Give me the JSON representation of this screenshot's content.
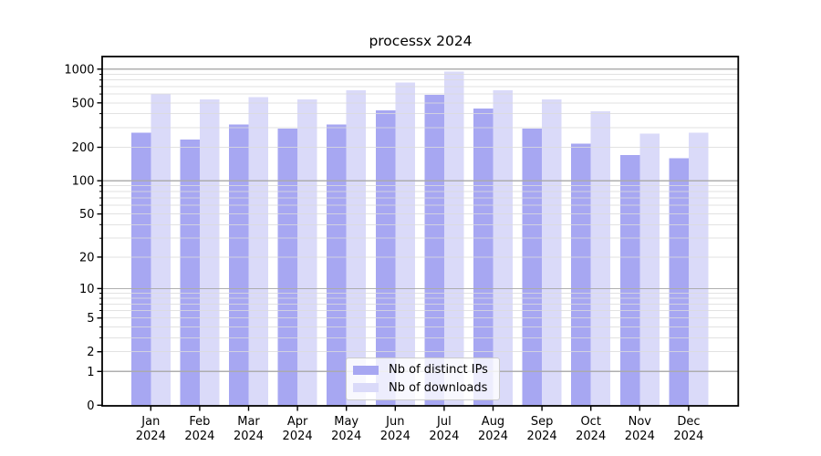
{
  "title": "processx 2024",
  "chart_data": {
    "type": "bar",
    "title": "processx 2024",
    "categories": [
      {
        "month": "Jan",
        "year": "2024"
      },
      {
        "month": "Feb",
        "year": "2024"
      },
      {
        "month": "Mar",
        "year": "2024"
      },
      {
        "month": "Apr",
        "year": "2024"
      },
      {
        "month": "May",
        "year": "2024"
      },
      {
        "month": "Jun",
        "year": "2024"
      },
      {
        "month": "Jul",
        "year": "2024"
      },
      {
        "month": "Aug",
        "year": "2024"
      },
      {
        "month": "Sep",
        "year": "2024"
      },
      {
        "month": "Oct",
        "year": "2024"
      },
      {
        "month": "Nov",
        "year": "2024"
      },
      {
        "month": "Dec",
        "year": "2024"
      }
    ],
    "series": [
      {
        "name": "Nb of distinct IPs",
        "color": "#a7a7f2",
        "values": [
          270,
          235,
          320,
          295,
          320,
          430,
          590,
          445,
          295,
          215,
          170,
          160
        ]
      },
      {
        "name": "Nb of downloads",
        "color": "#dadaf9",
        "values": [
          600,
          535,
          560,
          535,
          650,
          760,
          950,
          650,
          535,
          420,
          265,
          270
        ]
      }
    ],
    "xlabel": "",
    "ylabel": "",
    "yscale": "log10(1+v)",
    "yticks": [
      0,
      1,
      2,
      5,
      10,
      20,
      50,
      100,
      200,
      500,
      1000
    ],
    "ylim": [
      0,
      1300
    ],
    "grid": {
      "major_values": [
        1,
        10,
        100,
        1000
      ],
      "minor_values": [
        2,
        3,
        4,
        5,
        6,
        7,
        8,
        9,
        20,
        30,
        40,
        50,
        60,
        70,
        80,
        90,
        200,
        300,
        400,
        500,
        600,
        700,
        800,
        900
      ],
      "major_color": "#ababab",
      "minor_color": "#dcdcdc"
    },
    "legend_position": "lower center"
  }
}
